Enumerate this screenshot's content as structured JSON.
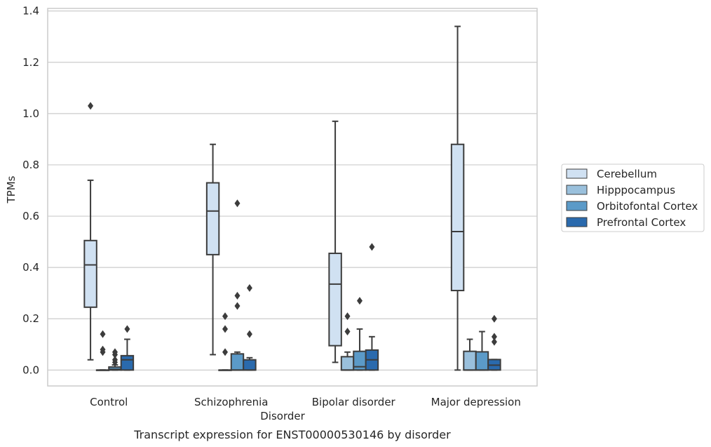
{
  "chart_data": {
    "type": "box",
    "title": "",
    "caption": "Transcript expression for ENST00000530146 by disorder",
    "xlabel": "Disorder",
    "ylabel": "TPMs",
    "ylim": [
      -0.062,
      1.41
    ],
    "yticks": [
      0.0,
      0.2,
      0.4,
      0.6,
      0.8,
      1.0,
      1.2,
      1.4
    ],
    "ytick_labels": [
      "0.0",
      "0.2",
      "0.4",
      "0.6",
      "0.8",
      "1.0",
      "1.2",
      "1.4"
    ],
    "grid": true,
    "legend_position": "right",
    "categories": [
      "Control",
      "Schizophrenia",
      "Bipolar disorder",
      "Major depression"
    ],
    "series": [
      {
        "name": "Cerebellum",
        "color": "#d0e1f2",
        "boxes": [
          {
            "whisker_low": 0.04,
            "q1": 0.245,
            "median": 0.41,
            "q3": 0.505,
            "whisker_high": 0.74,
            "outliers": [
              1.03
            ]
          },
          {
            "whisker_low": 0.06,
            "q1": 0.45,
            "median": 0.62,
            "q3": 0.73,
            "whisker_high": 0.88,
            "outliers": []
          },
          {
            "whisker_low": 0.03,
            "q1": 0.095,
            "median": 0.335,
            "q3": 0.455,
            "whisker_high": 0.97,
            "outliers": []
          },
          {
            "whisker_low": 0.0,
            "q1": 0.31,
            "median": 0.54,
            "q3": 0.88,
            "whisker_high": 1.34,
            "outliers": []
          }
        ]
      },
      {
        "name": "Hipppocampus",
        "color": "#9ac0dc",
        "boxes": [
          {
            "whisker_low": 0.0,
            "q1": 0.0,
            "median": 0.0,
            "q3": 0.0,
            "whisker_high": 0.0,
            "outliers": [
              0.07,
              0.08,
              0.14
            ]
          },
          {
            "whisker_low": 0.0,
            "q1": 0.0,
            "median": 0.0,
            "q3": 0.0,
            "whisker_high": 0.0,
            "outliers": [
              0.07,
              0.16,
              0.21
            ]
          },
          {
            "whisker_low": 0.0,
            "q1": 0.0,
            "median": 0.0,
            "q3": 0.052,
            "whisker_high": 0.07,
            "outliers": [
              0.15,
              0.21
            ]
          },
          {
            "whisker_low": 0.0,
            "q1": 0.0,
            "median": 0.0,
            "q3": 0.073,
            "whisker_high": 0.12,
            "outliers": []
          }
        ]
      },
      {
        "name": "Orbitofontal Cortex",
        "color": "#5b9ac8",
        "boxes": [
          {
            "whisker_low": 0.0,
            "q1": 0.0,
            "median": 0.003,
            "q3": 0.012,
            "whisker_high": 0.02,
            "outliers": [
              0.03,
              0.04,
              0.06,
              0.07
            ]
          },
          {
            "whisker_low": 0.0,
            "q1": 0.0,
            "median": 0.0,
            "q3": 0.063,
            "whisker_high": 0.07,
            "outliers": [
              0.25,
              0.29,
              0.65
            ]
          },
          {
            "whisker_low": 0.0,
            "q1": 0.0,
            "median": 0.013,
            "q3": 0.073,
            "whisker_high": 0.16,
            "outliers": [
              0.27
            ]
          },
          {
            "whisker_low": 0.0,
            "q1": 0.0,
            "median": 0.0,
            "q3": 0.071,
            "whisker_high": 0.15,
            "outliers": []
          }
        ]
      },
      {
        "name": "Prefrontal Cortex",
        "color": "#2a6aad",
        "boxes": [
          {
            "whisker_low": 0.0,
            "q1": 0.0,
            "median": 0.04,
            "q3": 0.056,
            "whisker_high": 0.12,
            "outliers": [
              0.16
            ]
          },
          {
            "whisker_low": 0.0,
            "q1": 0.0,
            "median": 0.0,
            "q3": 0.04,
            "whisker_high": 0.048,
            "outliers": [
              0.14,
              0.32
            ]
          },
          {
            "whisker_low": 0.0,
            "q1": 0.0,
            "median": 0.04,
            "q3": 0.078,
            "whisker_high": 0.13,
            "outliers": [
              0.48
            ]
          },
          {
            "whisker_low": 0.0,
            "q1": 0.0,
            "median": 0.019,
            "q3": 0.041,
            "whisker_high": 0.041,
            "outliers": [
              0.11,
              0.13,
              0.2
            ]
          }
        ]
      }
    ]
  }
}
